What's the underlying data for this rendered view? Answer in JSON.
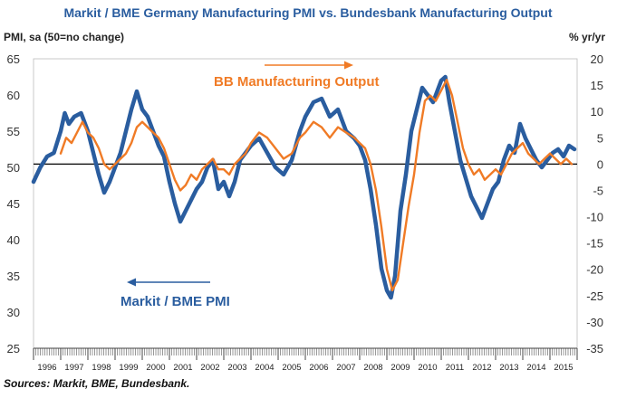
{
  "chart_data": {
    "type": "line",
    "title": "Markit / BME Germany Manufacturing PMI vs. Bundesbank Manufacturing Output",
    "ylabel_left": "PMI, sa (50=no change)",
    "ylabel_right": "% yr/yr",
    "ylim_left": [
      25,
      65
    ],
    "ylim_right": [
      -35,
      20
    ],
    "yticks_left": [
      25,
      30,
      35,
      40,
      45,
      50,
      55,
      60,
      65
    ],
    "yticks_right": [
      -35,
      -30,
      -25,
      -20,
      -15,
      -10,
      -5,
      0,
      5,
      10,
      15,
      20
    ],
    "xlim": [
      1996.0,
      2016.0
    ],
    "years": [
      "1996",
      "1997",
      "1998",
      "1999",
      "2000",
      "2001",
      "2002",
      "2003",
      "2004",
      "2005",
      "2006",
      "2007",
      "2008",
      "2009",
      "2010",
      "2011",
      "2012",
      "2013",
      "2014",
      "2015"
    ],
    "annotations": {
      "pmi": "Markit / BME PMI",
      "output": "BB Manufacturing Output"
    },
    "source": "Sources: Markit, BME, Bundesbank.",
    "colors": {
      "pmi": "#2a5d9f",
      "output": "#f07b26",
      "zero_line": "#000000"
    },
    "series": [
      {
        "name": "Markit / BME PMI",
        "axis": "left",
        "x": [
          1996.0,
          1996.25,
          1996.5,
          1996.75,
          1997.0,
          1997.15,
          1997.3,
          1997.5,
          1997.75,
          1998.0,
          1998.2,
          1998.4,
          1998.6,
          1998.8,
          1999.0,
          1999.2,
          1999.4,
          1999.6,
          1999.8,
          2000.0,
          2000.2,
          2000.4,
          2000.6,
          2000.8,
          2001.0,
          2001.2,
          2001.4,
          2001.6,
          2001.8,
          2002.0,
          2002.2,
          2002.4,
          2002.6,
          2002.8,
          2003.0,
          2003.2,
          2003.4,
          2003.6,
          2003.8,
          2004.0,
          2004.3,
          2004.6,
          2004.9,
          2005.2,
          2005.5,
          2005.8,
          2006.0,
          2006.3,
          2006.6,
          2006.9,
          2007.2,
          2007.5,
          2007.8,
          2008.0,
          2008.2,
          2008.4,
          2008.6,
          2008.8,
          2009.0,
          2009.15,
          2009.3,
          2009.5,
          2009.7,
          2009.9,
          2010.1,
          2010.3,
          2010.5,
          2010.7,
          2010.9,
          2011.0,
          2011.15,
          2011.3,
          2011.5,
          2011.7,
          2011.9,
          2012.1,
          2012.3,
          2012.5,
          2012.7,
          2012.9,
          2013.1,
          2013.3,
          2013.5,
          2013.7,
          2013.9,
          2014.1,
          2014.3,
          2014.5,
          2014.7,
          2014.9,
          2015.1,
          2015.3,
          2015.5,
          2015.7,
          2015.9
        ],
        "values": [
          48.0,
          50.0,
          51.5,
          52.0,
          55.0,
          57.5,
          56.0,
          57.0,
          57.5,
          55.0,
          52.0,
          49.0,
          46.5,
          48.0,
          50.0,
          52.0,
          55.0,
          58.0,
          60.5,
          58.0,
          57.0,
          55.0,
          53.0,
          51.5,
          48.0,
          45.0,
          42.5,
          44.0,
          45.5,
          47.0,
          48.0,
          50.0,
          51.0,
          47.0,
          48.0,
          46.0,
          48.0,
          51.0,
          52.0,
          53.0,
          54.0,
          52.0,
          50.0,
          49.0,
          51.0,
          55.0,
          57.0,
          59.0,
          59.5,
          57.0,
          58.0,
          55.0,
          54.0,
          53.0,
          51.0,
          47.0,
          42.0,
          36.0,
          33.0,
          32.0,
          35.0,
          44.0,
          49.0,
          55.0,
          58.0,
          61.0,
          60.0,
          59.0,
          61.0,
          62.0,
          62.5,
          59.0,
          55.0,
          51.0,
          48.5,
          46.0,
          44.5,
          43.0,
          45.0,
          47.0,
          48.0,
          51.0,
          53.0,
          52.0,
          56.0,
          54.0,
          52.5,
          51.0,
          50.0,
          51.0,
          52.0,
          52.5,
          51.5,
          53.0,
          52.5
        ]
      },
      {
        "name": "BB Manufacturing Output",
        "axis": "right",
        "x": [
          1997.0,
          1997.2,
          1997.4,
          1997.6,
          1997.8,
          1998.0,
          1998.2,
          1998.4,
          1998.6,
          1998.8,
          1999.0,
          1999.2,
          1999.4,
          1999.6,
          1999.8,
          2000.0,
          2000.2,
          2000.4,
          2000.6,
          2000.8,
          2001.0,
          2001.2,
          2001.4,
          2001.6,
          2001.8,
          2002.0,
          2002.2,
          2002.4,
          2002.6,
          2002.8,
          2003.0,
          2003.2,
          2003.4,
          2003.6,
          2003.8,
          2004.0,
          2004.3,
          2004.6,
          2004.9,
          2005.2,
          2005.5,
          2005.8,
          2006.0,
          2006.3,
          2006.6,
          2006.9,
          2007.2,
          2007.5,
          2007.8,
          2008.0,
          2008.2,
          2008.4,
          2008.6,
          2008.8,
          2009.0,
          2009.2,
          2009.4,
          2009.6,
          2009.8,
          2010.0,
          2010.2,
          2010.4,
          2010.6,
          2010.8,
          2011.0,
          2011.2,
          2011.4,
          2011.6,
          2011.8,
          2012.0,
          2012.2,
          2012.4,
          2012.6,
          2012.8,
          2013.0,
          2013.2,
          2013.4,
          2013.6,
          2013.8,
          2014.0,
          2014.2,
          2014.4,
          2014.6,
          2014.8,
          2015.0,
          2015.2,
          2015.4,
          2015.6,
          2015.8
        ],
        "values": [
          2.0,
          5.0,
          4.0,
          6.0,
          8.0,
          6.0,
          5.0,
          3.0,
          0.0,
          -1.0,
          0.0,
          1.0,
          2.0,
          4.0,
          7.0,
          8.0,
          7.0,
          6.0,
          5.0,
          3.0,
          0.0,
          -3.0,
          -5.0,
          -4.0,
          -2.0,
          -3.0,
          -1.0,
          0.0,
          1.0,
          -1.0,
          -1.0,
          -2.0,
          0.0,
          1.0,
          2.0,
          4.0,
          6.0,
          5.0,
          3.0,
          1.0,
          2.0,
          5.0,
          6.0,
          8.0,
          7.0,
          5.0,
          7.0,
          6.0,
          5.0,
          4.0,
          3.0,
          0.0,
          -5.0,
          -12.0,
          -20.0,
          -24.0,
          -22.0,
          -15.0,
          -8.0,
          -2.0,
          6.0,
          12.0,
          13.0,
          12.0,
          14.0,
          16.0,
          13.0,
          8.0,
          3.0,
          0.0,
          -2.0,
          -1.0,
          -3.0,
          -2.0,
          -1.0,
          -2.0,
          0.0,
          2.0,
          3.0,
          4.0,
          2.0,
          1.0,
          0.0,
          1.0,
          2.0,
          1.0,
          0.0,
          1.0,
          0.0
        ]
      }
    ]
  }
}
